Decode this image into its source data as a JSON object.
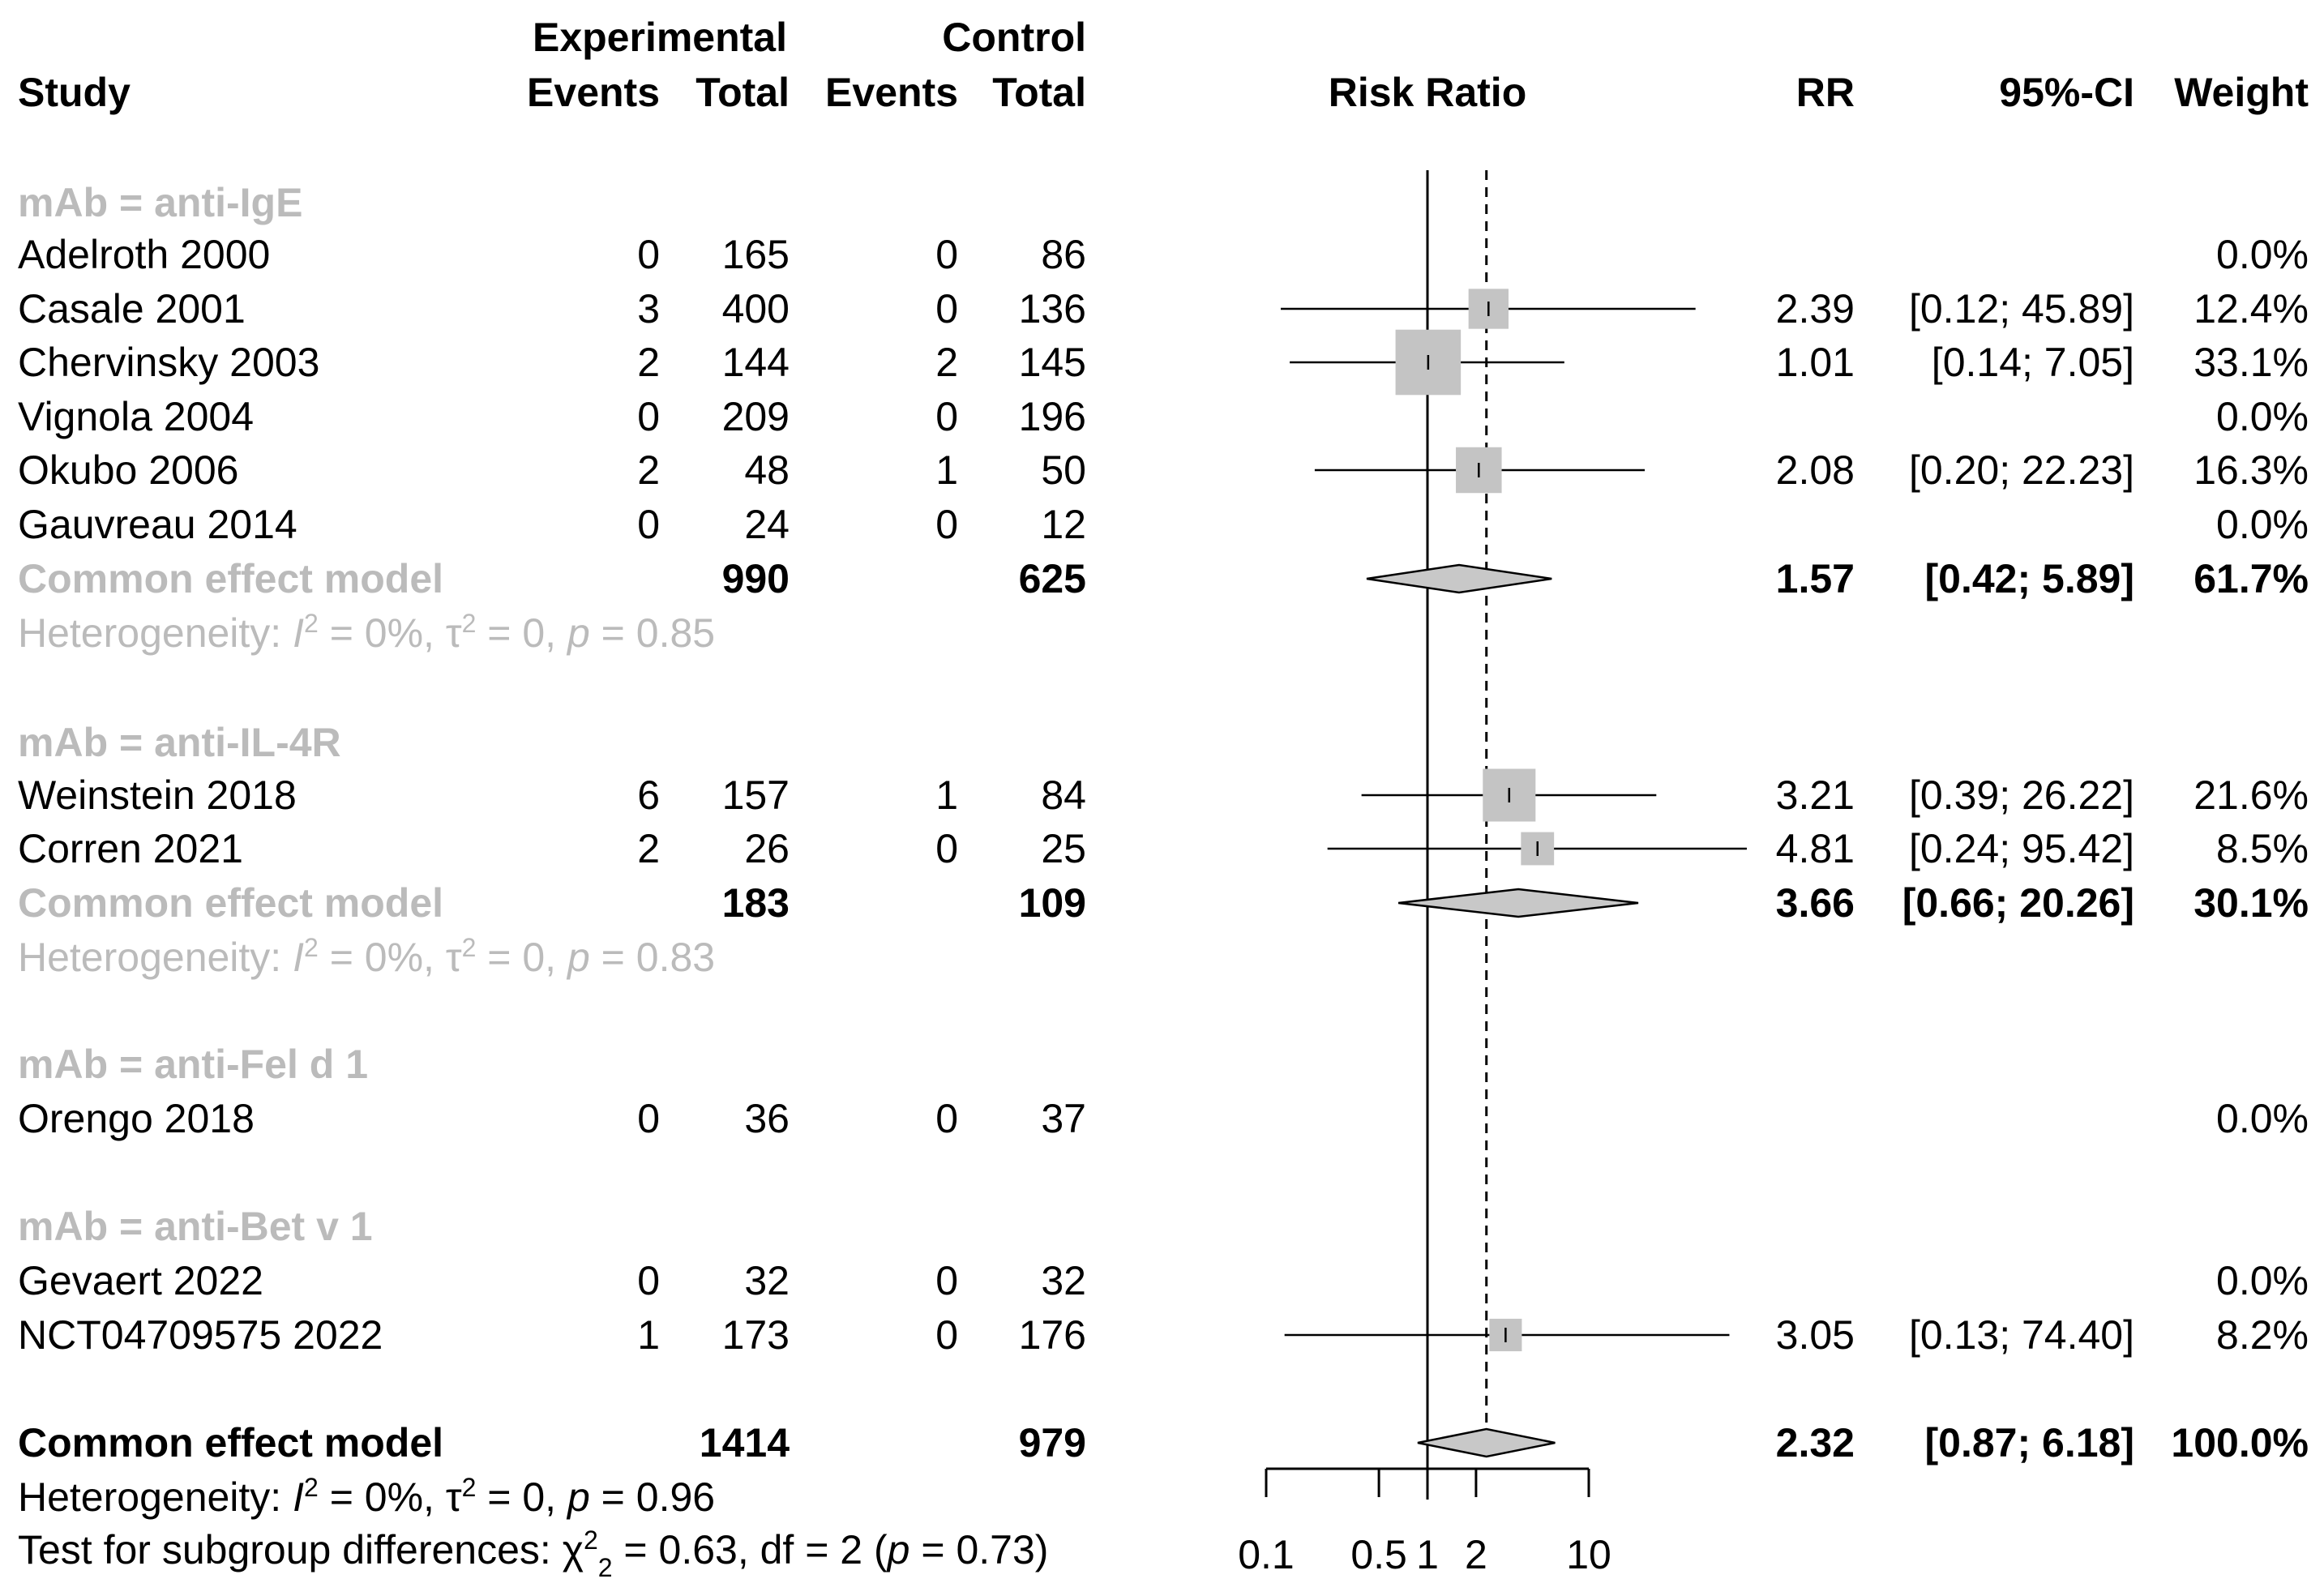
{
  "chart_data": {
    "type": "forest",
    "colors": {
      "text": "#000000",
      "subgroup": "#bbbbbb",
      "box": "#c4c4c4",
      "diamond": "#c8c8c8"
    },
    "headers": {
      "study": "Study",
      "experimental": "Experimental",
      "control": "Control",
      "events": "Events",
      "total": "Total",
      "risk_ratio": "Risk Ratio",
      "rr": "RR",
      "ci": "95%-CI",
      "weight": "Weight"
    },
    "axis": {
      "scale": "log",
      "range": [
        0.1,
        10
      ],
      "ticks": [
        {
          "value": 0.1,
          "label": "0.1"
        },
        {
          "value": 0.5,
          "label": "0.5"
        },
        {
          "value": 1,
          "label": "1"
        },
        {
          "value": 2,
          "label": "2"
        },
        {
          "value": 10,
          "label": "10"
        }
      ],
      "null_value": 1,
      "overall_value": 2.32
    },
    "subgroups": [
      {
        "label": "mAb = anti-IgE",
        "studies": [
          {
            "name": "Adelroth 2000",
            "e_events": "0",
            "e_total": "165",
            "c_events": "0",
            "c_total": "86",
            "rr": null,
            "lower": null,
            "upper": null,
            "rr_text": "",
            "ci_text": "",
            "weight": "0.0%",
            "w": 0
          },
          {
            "name": "Casale 2001",
            "e_events": "3",
            "e_total": "400",
            "c_events": "0",
            "c_total": "136",
            "rr": 2.39,
            "lower": 0.12,
            "upper": 45.89,
            "rr_text": "2.39",
            "ci_text": "[0.12; 45.89]",
            "weight": "12.4%",
            "w": 12.4
          },
          {
            "name": "Chervinsky 2003",
            "e_events": "2",
            "e_total": "144",
            "c_events": "2",
            "c_total": "145",
            "rr": 1.01,
            "lower": 0.14,
            "upper": 7.05,
            "rr_text": "1.01",
            "ci_text": "[0.14;  7.05]",
            "weight": "33.1%",
            "w": 33.1
          },
          {
            "name": "Vignola 2004",
            "e_events": "0",
            "e_total": "209",
            "c_events": "0",
            "c_total": "196",
            "rr": null,
            "lower": null,
            "upper": null,
            "rr_text": "",
            "ci_text": "",
            "weight": "0.0%",
            "w": 0
          },
          {
            "name": "Okubo 2006",
            "e_events": "2",
            "e_total": "48",
            "c_events": "1",
            "c_total": "50",
            "rr": 2.08,
            "lower": 0.2,
            "upper": 22.23,
            "rr_text": "2.08",
            "ci_text": "[0.20; 22.23]",
            "weight": "16.3%",
            "w": 16.3
          },
          {
            "name": "Gauvreau 2014",
            "e_events": "0",
            "e_total": "24",
            "c_events": "0",
            "c_total": "12",
            "rr": null,
            "lower": null,
            "upper": null,
            "rr_text": "",
            "ci_text": "",
            "weight": "0.0%",
            "w": 0
          }
        ],
        "pooled": {
          "label": "Common effect model",
          "e_total": "990",
          "c_total": "625",
          "rr": 1.57,
          "lower": 0.42,
          "upper": 5.89,
          "rr_text": "1.57",
          "ci_text": "[0.42;  5.89]",
          "weight": "61.7%"
        },
        "heterogeneity": {
          "prefix": "Heterogeneity: ",
          "i2": "= 0%, ",
          "tau2": "= 0, ",
          "p": "= 0.85"
        }
      },
      {
        "label": "mAb = anti-IL-4R",
        "studies": [
          {
            "name": "Weinstein 2018",
            "e_events": "6",
            "e_total": "157",
            "c_events": "1",
            "c_total": "84",
            "rr": 3.21,
            "lower": 0.39,
            "upper": 26.22,
            "rr_text": "3.21",
            "ci_text": "[0.39; 26.22]",
            "weight": "21.6%",
            "w": 21.6
          },
          {
            "name": "Corren 2021",
            "e_events": "2",
            "e_total": "26",
            "c_events": "0",
            "c_total": "25",
            "rr": 4.81,
            "lower": 0.24,
            "upper": 95.42,
            "rr_text": "4.81",
            "ci_text": "[0.24; 95.42]",
            "weight": "8.5%",
            "w": 8.5
          }
        ],
        "pooled": {
          "label": "Common effect model",
          "e_total": "183",
          "c_total": "109",
          "rr": 3.66,
          "lower": 0.66,
          "upper": 20.26,
          "rr_text": "3.66",
          "ci_text": "[0.66; 20.26]",
          "weight": "30.1%"
        },
        "heterogeneity": {
          "prefix": "Heterogeneity: ",
          "i2": "= 0%, ",
          "tau2": "= 0, ",
          "p": "= 0.83"
        }
      },
      {
        "label": "mAb = anti-Fel d 1",
        "studies": [
          {
            "name": "Orengo 2018",
            "e_events": "0",
            "e_total": "36",
            "c_events": "0",
            "c_total": "37",
            "rr": null,
            "lower": null,
            "upper": null,
            "rr_text": "",
            "ci_text": "",
            "weight": "0.0%",
            "w": 0
          }
        ]
      },
      {
        "label": "mAb = anti-Bet v 1",
        "studies": [
          {
            "name": "Gevaert 2022",
            "e_events": "0",
            "e_total": "32",
            "c_events": "0",
            "c_total": "32",
            "rr": null,
            "lower": null,
            "upper": null,
            "rr_text": "",
            "ci_text": "",
            "weight": "0.0%",
            "w": 0
          },
          {
            "name": "NCT04709575 2022",
            "e_events": "1",
            "e_total": "173",
            "c_events": "0",
            "c_total": "176",
            "rr": 3.05,
            "lower": 0.13,
            "upper": 74.4,
            "rr_text": "3.05",
            "ci_text": "[0.13; 74.40]",
            "weight": "8.2%",
            "w": 8.2
          }
        ]
      }
    ],
    "overall": {
      "label": "Common effect model",
      "e_total": "1414",
      "c_total": "979",
      "rr": 2.32,
      "lower": 0.87,
      "upper": 6.18,
      "rr_text": "2.32",
      "ci_text": "[0.87;  6.18]",
      "weight": "100.0%",
      "heterogeneity": {
        "prefix": "Heterogeneity: ",
        "i2": "= 0%, ",
        "tau2": "= 0, ",
        "p": "= 0.96"
      },
      "subgroup_test": {
        "prefix": "Test for subgroup differences: ",
        "chi2": "= 0.63, df = 2 (",
        "p": "= 0.73)"
      }
    }
  }
}
